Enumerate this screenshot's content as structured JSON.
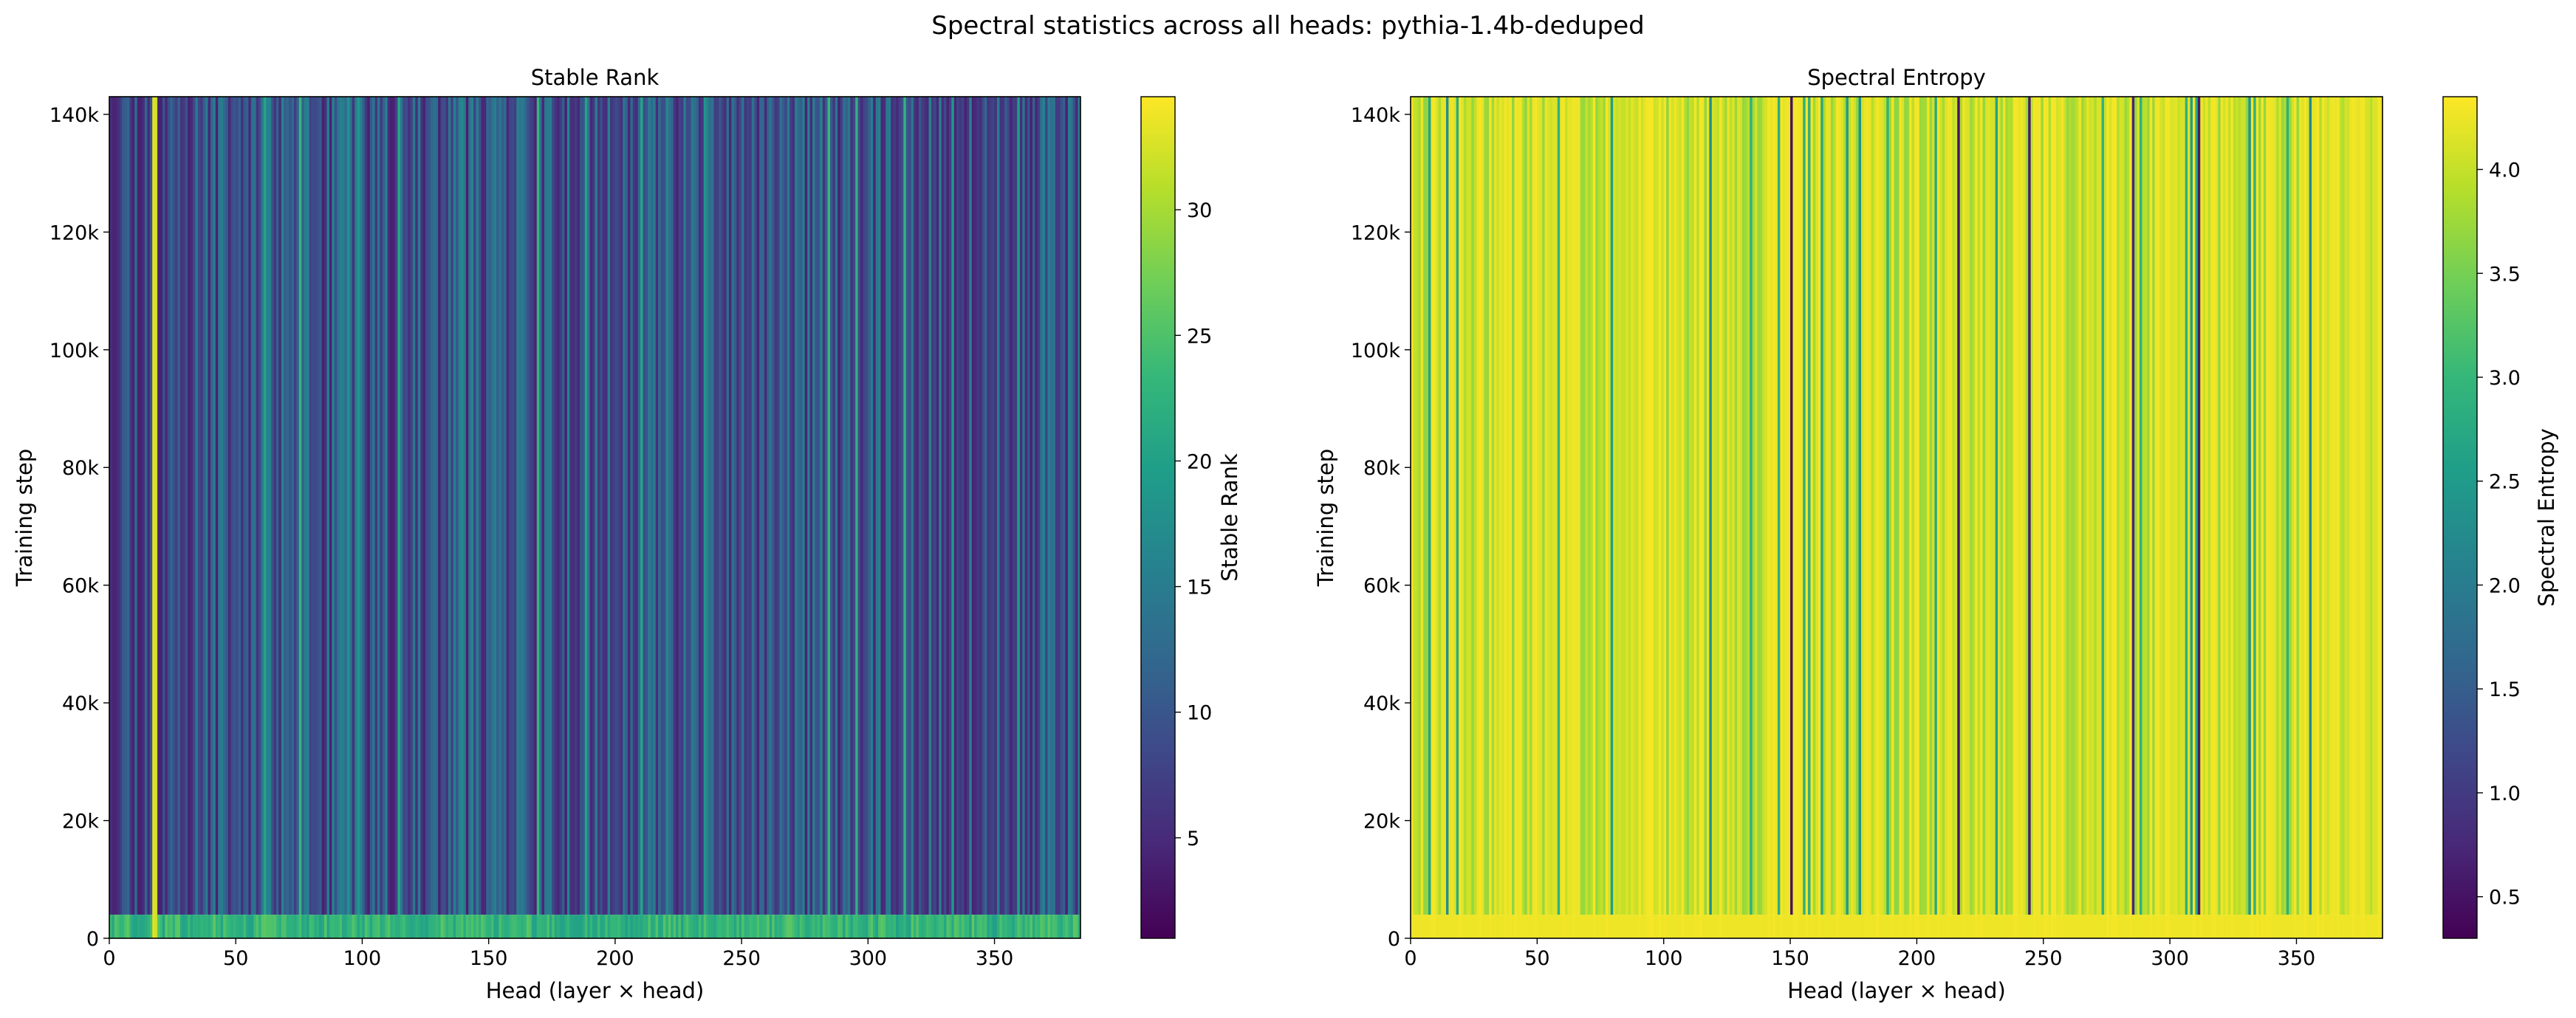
{
  "figure": {
    "suptitle": "Spectral statistics across all heads: pythia-1.4b-deduped"
  },
  "colormap": "viridis",
  "viridis_stops": [
    "#440154",
    "#482878",
    "#3e4989",
    "#31688e",
    "#26828e",
    "#1f9e89",
    "#35b779",
    "#6ece58",
    "#b5de2b",
    "#fde725"
  ],
  "chart_data": [
    {
      "type": "heatmap",
      "title": "Stable Rank",
      "xlabel": "Head (layer × head)",
      "ylabel": "Training step",
      "xlim": [
        0,
        384
      ],
      "ylim": [
        0,
        143000
      ],
      "xticks": [
        0,
        50,
        100,
        150,
        200,
        250,
        300,
        350
      ],
      "xtick_labels": [
        "0",
        "50",
        "100",
        "150",
        "200",
        "250",
        "300",
        "350"
      ],
      "yticks": [
        0,
        20000,
        40000,
        60000,
        80000,
        100000,
        120000,
        140000
      ],
      "ytick_labels": [
        "0",
        "20k",
        "40k",
        "60k",
        "80k",
        "100k",
        "120k",
        "140k"
      ],
      "colorbar": {
        "label": "Stable Rank",
        "range": [
          1.0,
          34.5
        ],
        "ticks": [
          5,
          10,
          15,
          20,
          25,
          30
        ],
        "tick_labels": [
          "5",
          "10",
          "15",
          "20",
          "25",
          "30"
        ]
      },
      "n_heads": 384,
      "typical_value_range": [
        4,
        16
      ],
      "early_training_value": 26,
      "early_training_until_step": 4000,
      "notable_columns": [
        {
          "head": 17,
          "value": 33
        },
        {
          "head": 18,
          "value": 32
        }
      ],
      "grid": false
    },
    {
      "type": "heatmap",
      "title": "Spectral Entropy",
      "xlabel": "Head (layer × head)",
      "ylabel": "Training step",
      "xlim": [
        0,
        384
      ],
      "ylim": [
        0,
        143000
      ],
      "xticks": [
        0,
        50,
        100,
        150,
        200,
        250,
        300,
        350
      ],
      "xtick_labels": [
        "0",
        "50",
        "100",
        "150",
        "200",
        "250",
        "300",
        "350"
      ],
      "yticks": [
        0,
        20000,
        40000,
        60000,
        80000,
        100000,
        120000,
        140000
      ],
      "ytick_labels": [
        "0",
        "20k",
        "40k",
        "60k",
        "80k",
        "100k",
        "120k",
        "140k"
      ],
      "colorbar": {
        "label": "Spectral Entropy",
        "range": [
          0.3,
          4.35
        ],
        "ticks": [
          0.5,
          1.0,
          1.5,
          2.0,
          2.5,
          3.0,
          3.5,
          4.0
        ],
        "tick_labels": [
          "0.5",
          "1.0",
          "1.5",
          "2.0",
          "2.5",
          "3.0",
          "3.5",
          "4.0"
        ]
      },
      "n_heads": 384,
      "typical_value_range": [
        3.6,
        4.3
      ],
      "early_training_value": 4.25,
      "notable_columns": [
        {
          "head": 150,
          "value": 0.5
        },
        {
          "head": 216,
          "value": 0.5
        },
        {
          "head": 244,
          "value": 0.6
        },
        {
          "head": 285,
          "value": 0.7
        },
        {
          "head": 311,
          "value": 0.6
        }
      ],
      "grid": false
    }
  ]
}
